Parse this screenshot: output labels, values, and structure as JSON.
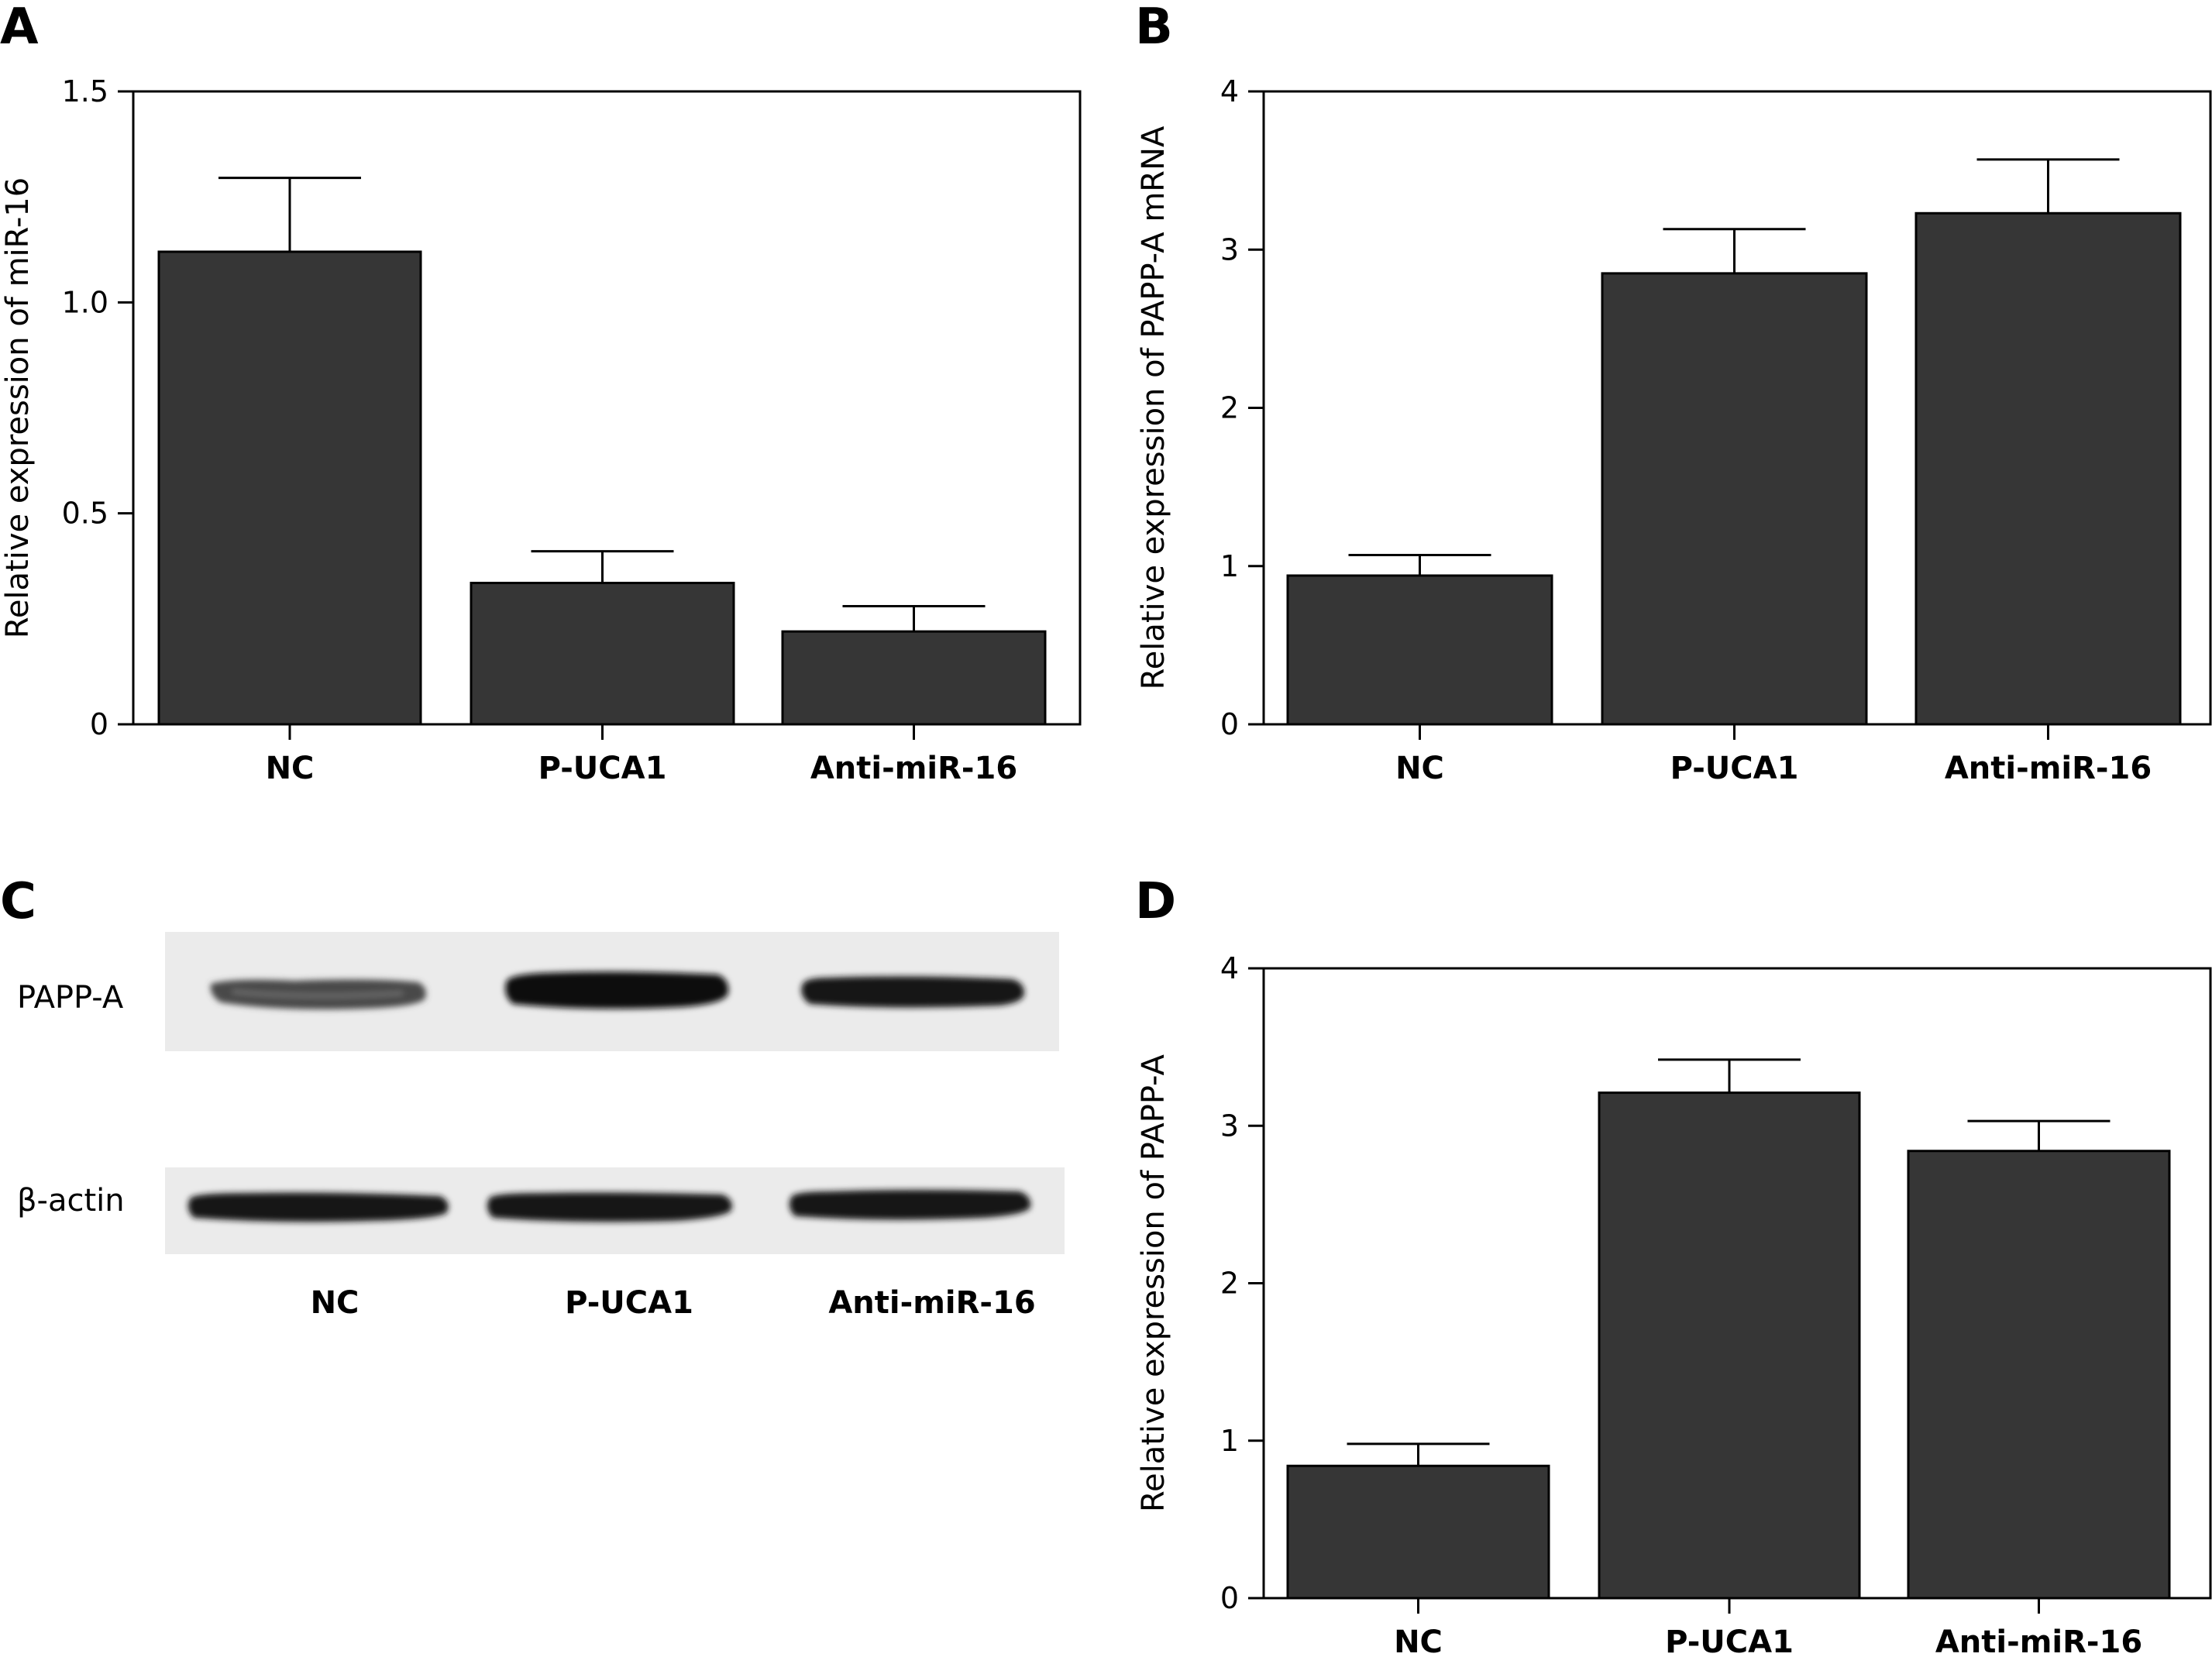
{
  "chart_data": [
    {
      "panel": "A",
      "type": "bar",
      "categories": [
        "NC",
        "P-UCA1",
        "Anti-miR-16"
      ],
      "series": [
        {
          "values": [
            1.12,
            0.335,
            0.22
          ],
          "errors": [
            0.175,
            0.075,
            0.06
          ]
        }
      ],
      "ylabel": "Relative expression of miR-16",
      "ylim": [
        0,
        1.5
      ],
      "yticks": [
        0,
        0.5,
        1.0,
        1.5
      ],
      "ytick_labels": [
        "0",
        "0.5",
        "1.0",
        "1.5"
      ],
      "bar_color": "#363636",
      "grid": false
    },
    {
      "panel": "B",
      "type": "bar",
      "categories": [
        "NC",
        "P-UCA1",
        "Anti-miR-16"
      ],
      "series": [
        {
          "values": [
            0.94,
            2.85,
            3.23
          ],
          "errors": [
            0.13,
            0.28,
            0.34
          ]
        }
      ],
      "ylabel": "Relative expression of PAPP-A mRNA",
      "ylim": [
        0,
        4
      ],
      "yticks": [
        0,
        1,
        2,
        3,
        4
      ],
      "ytick_labels": [
        "0",
        "1",
        "2",
        "3",
        "4"
      ],
      "bar_color": "#363636",
      "grid": false
    },
    {
      "panel": "D",
      "type": "bar",
      "categories": [
        "NC",
        "P-UCA1",
        "Anti-miR-16"
      ],
      "series": [
        {
          "values": [
            0.84,
            3.21,
            2.84
          ],
          "errors": [
            0.14,
            0.21,
            0.19
          ]
        }
      ],
      "ylabel": "Relative expression of PAPP-A",
      "ylim": [
        0,
        4
      ],
      "yticks": [
        0,
        1,
        2,
        3,
        4
      ],
      "ytick_labels": [
        "0",
        "1",
        "2",
        "3",
        "4"
      ],
      "bar_color": "#363636",
      "grid": false
    }
  ],
  "blot": {
    "panel": "C",
    "rows": [
      {
        "label": "PAPP-A",
        "intensities": [
          0.55,
          1.0,
          0.95
        ]
      },
      {
        "label": "β-actin",
        "intensities": [
          1.0,
          1.0,
          1.0
        ]
      }
    ],
    "lanes": [
      "NC",
      "P-UCA1",
      "Anti-miR-16"
    ]
  }
}
